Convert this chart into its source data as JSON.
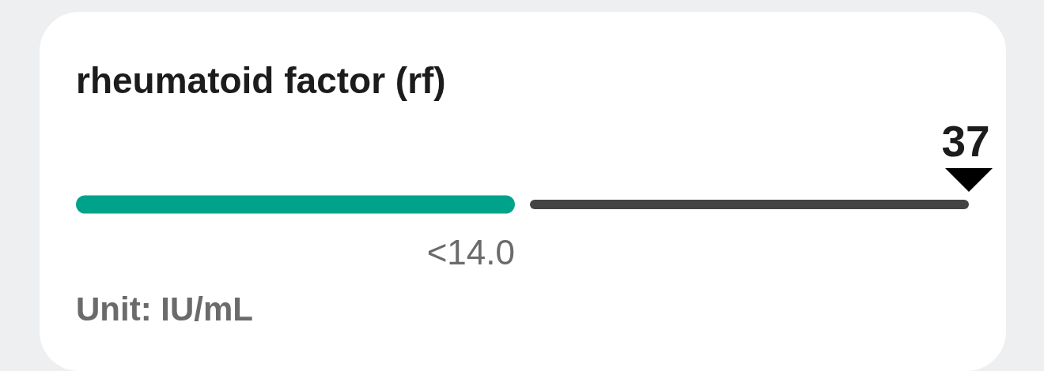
{
  "chart_data": {
    "type": "other",
    "title": "rheumatoid factor (rf)",
    "values": [
      37
    ],
    "data_labels": true,
    "bands": [
      {
        "axis": "x",
        "label": "<14.0",
        "color": "#00a38a"
      },
      {
        "axis": "x",
        "color": "#444444"
      }
    ],
    "annotations": [
      "Unit: IU/mL"
    ]
  }
}
